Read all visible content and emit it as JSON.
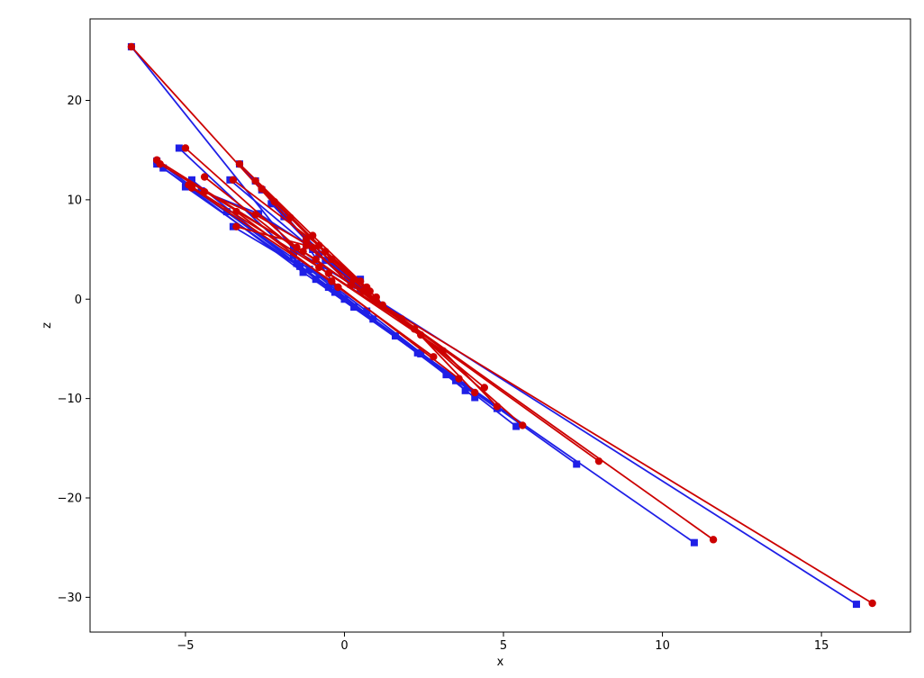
{
  "chart_data": {
    "type": "line",
    "xlabel": "x",
    "ylabel": "z",
    "xlim": [
      -8.0,
      17.8
    ],
    "ylim": [
      -33.5,
      28.2
    ],
    "xticks": [
      -5,
      0,
      5,
      10,
      15
    ],
    "yticks": [
      -30,
      -20,
      -10,
      0,
      10,
      20
    ],
    "xtick_labels": [
      "−5",
      "0",
      "5",
      "10",
      "15"
    ],
    "ytick_labels": [
      "−30",
      "−20",
      "−10",
      "0",
      "10",
      "20"
    ],
    "grid": false,
    "series": [
      {
        "color": "#1f1fe6",
        "marker": "square",
        "segments": [
          [
            [
              -6.7,
              25.4
            ],
            [
              -1.6,
              5.0
            ],
            [
              0.5,
              1.0
            ],
            [
              16.1,
              -30.7
            ]
          ],
          [
            [
              -3.5,
              7.3
            ],
            [
              -1.4,
              3.3
            ],
            [
              0.3,
              -0.8
            ],
            [
              11.0,
              -24.5
            ]
          ],
          [
            [
              -5.2,
              15.2
            ],
            [
              -1.6,
              4.4
            ],
            [
              0.7,
              -1.2
            ],
            [
              5.4,
              -12.8
            ]
          ],
          [
            [
              -5.9,
              13.9
            ],
            [
              -1.5,
              3.6
            ],
            [
              0.9,
              -2.0
            ],
            [
              7.3,
              -16.6
            ]
          ],
          [
            [
              -5.9,
              13.6
            ],
            [
              -1.1,
              3.0
            ],
            [
              1.6,
              -3.7
            ],
            [
              4.8,
              -11.0
            ]
          ],
          [
            [
              -5.7,
              13.2
            ],
            [
              -1.3,
              2.7
            ],
            [
              2.3,
              -5.4
            ],
            [
              4.1,
              -9.9
            ]
          ],
          [
            [
              -4.8,
              12.0
            ],
            [
              -0.9,
              2.0
            ],
            [
              3.5,
              -8.2
            ],
            [
              3.8,
              -9.2
            ]
          ],
          [
            [
              -5.0,
              11.3
            ],
            [
              -0.5,
              1.2
            ],
            [
              3.2,
              -7.6
            ]
          ],
          [
            [
              -3.7,
              8.8
            ],
            [
              -0.3,
              0.7
            ],
            [
              2.4,
              -5.5
            ]
          ],
          [
            [
              -3.6,
              12.0
            ],
            [
              -1.0,
              5.0
            ],
            [
              0.2,
              1.5
            ]
          ],
          [
            [
              -3.3,
              13.6
            ],
            [
              -1.2,
              6.0
            ],
            [
              0.6,
              1.0
            ]
          ],
          [
            [
              -2.8,
              11.9
            ],
            [
              -0.8,
              4.5
            ],
            [
              0.4,
              1.4
            ]
          ],
          [
            [
              -2.6,
              11.0
            ],
            [
              -1.9,
              8.3
            ],
            [
              0.1,
              2.2
            ]
          ],
          [
            [
              -4.5,
              10.9
            ],
            [
              -2.7,
              8.6
            ],
            [
              -1.2,
              5.5
            ],
            [
              0.0,
              0.0
            ]
          ],
          [
            [
              -2.3,
              9.6
            ],
            [
              -0.6,
              3.9
            ],
            [
              0.5,
              2.0
            ]
          ]
        ]
      },
      {
        "color": "#cc0000",
        "marker": "circle",
        "segments": [
          [
            [
              -6.7,
              25.4
            ],
            [
              -1.2,
              6.0
            ],
            [
              1.2,
              -0.6
            ],
            [
              16.6,
              -30.6
            ]
          ],
          [
            [
              -3.4,
              7.3
            ],
            [
              -1.2,
              5.4
            ],
            [
              0.6,
              0.8
            ],
            [
              11.6,
              -24.2
            ]
          ],
          [
            [
              -5.0,
              15.2
            ],
            [
              -1.5,
              5.2
            ],
            [
              1.0,
              -0.2
            ],
            [
              8.0,
              -16.3
            ]
          ],
          [
            [
              -5.9,
              14.0
            ],
            [
              -1.3,
              4.8
            ],
            [
              1.8,
              -2.0
            ],
            [
              5.6,
              -12.7
            ]
          ],
          [
            [
              -5.8,
              13.6
            ],
            [
              -0.9,
              4.0
            ],
            [
              2.4,
              -3.6
            ],
            [
              4.4,
              -8.9
            ]
          ],
          [
            [
              -4.4,
              12.3
            ],
            [
              -0.8,
              3.2
            ],
            [
              3.1,
              -5.2
            ],
            [
              4.8,
              -10.8
            ]
          ],
          [
            [
              -4.9,
              11.5
            ],
            [
              -0.5,
              2.6
            ],
            [
              2.2,
              -3.0
            ],
            [
              4.1,
              -9.4
            ]
          ],
          [
            [
              -4.8,
              11.2
            ],
            [
              -0.4,
              1.8
            ],
            [
              3.6,
              -8.0
            ]
          ],
          [
            [
              -3.4,
              8.8
            ],
            [
              -0.2,
              1.2
            ],
            [
              2.8,
              -5.8
            ]
          ],
          [
            [
              -3.5,
              12.0
            ],
            [
              -0.8,
              5.4
            ],
            [
              0.7,
              1.2
            ]
          ],
          [
            [
              -3.3,
              13.6
            ],
            [
              -1.0,
              6.4
            ],
            [
              0.5,
              1.8
            ]
          ],
          [
            [
              -2.8,
              11.9
            ],
            [
              -0.6,
              4.8
            ],
            [
              0.8,
              0.8
            ]
          ],
          [
            [
              -2.6,
              11.1
            ],
            [
              -1.7,
              8.2
            ],
            [
              0.3,
              2.0
            ]
          ],
          [
            [
              -4.4,
              10.8
            ],
            [
              -2.8,
              8.5
            ],
            [
              -1.0,
              5.2
            ],
            [
              0.2,
              1.4
            ]
          ],
          [
            [
              -2.2,
              9.8
            ],
            [
              -0.4,
              4.0
            ],
            [
              1.0,
              0.2
            ]
          ]
        ]
      }
    ]
  }
}
